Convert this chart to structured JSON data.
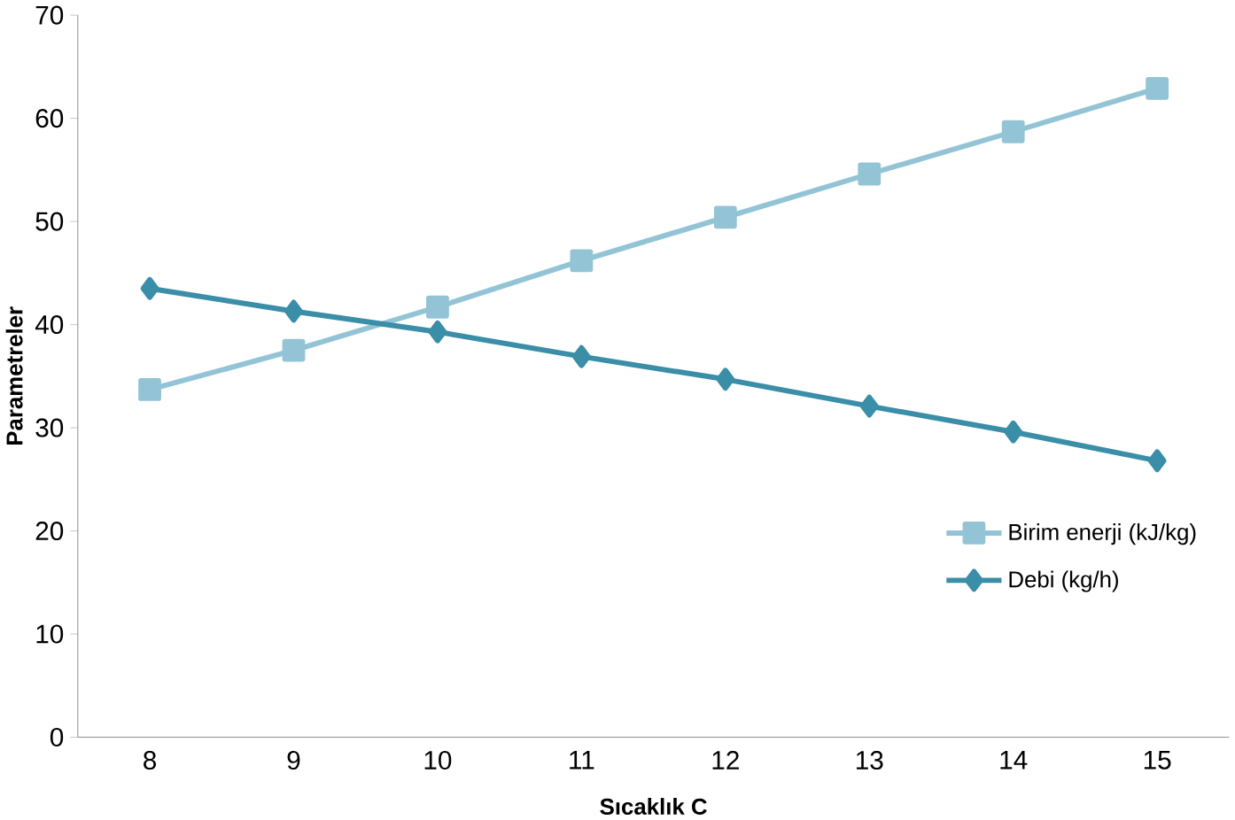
{
  "chart_data": {
    "type": "line",
    "xlabel": "Sıcaklık C",
    "ylabel": "Parametreler",
    "categories": [
      "8",
      "9",
      "10",
      "11",
      "12",
      "13",
      "14",
      "15"
    ],
    "series": [
      {
        "name": "Birim enerji (kJ/kg)",
        "color": "#93c4d6",
        "marker": "square",
        "values": [
          33.7,
          37.5,
          41.7,
          46.2,
          50.4,
          54.6,
          58.7,
          62.9
        ]
      },
      {
        "name": "Debi (kg/h)",
        "color": "#3a8ea8",
        "marker": "diamond",
        "values": [
          43.5,
          41.3,
          39.3,
          36.9,
          34.7,
          32.1,
          29.6,
          26.8
        ]
      }
    ],
    "ylim": [
      0,
      70
    ],
    "yticks": [
      0,
      10,
      20,
      30,
      40,
      50,
      60,
      70
    ],
    "grid": false,
    "legend": "right",
    "line_style": "solid"
  }
}
